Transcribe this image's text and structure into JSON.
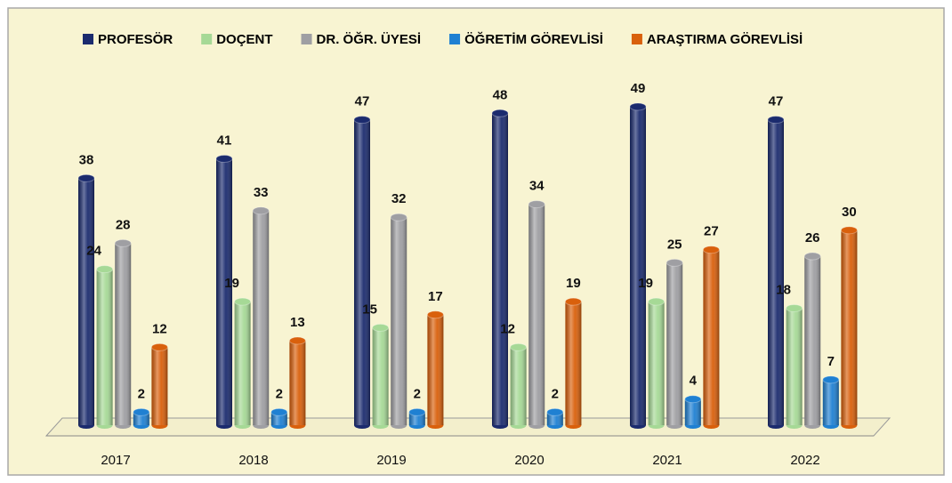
{
  "chart_data": {
    "type": "bar3d",
    "categories": [
      "2017",
      "2018",
      "2019",
      "2020",
      "2021",
      "2022"
    ],
    "series": [
      {
        "name": "PROFESÖR",
        "color": "#1b2b6e",
        "values": [
          38,
          41,
          47,
          48,
          49,
          47
        ]
      },
      {
        "name": "DOÇENT",
        "color": "#a6d996",
        "values": [
          24,
          19,
          15,
          12,
          19,
          18
        ]
      },
      {
        "name": "DR. ÖĞR. ÜYESİ",
        "color": "#9f9fa3",
        "values": [
          28,
          33,
          32,
          34,
          25,
          26
        ]
      },
      {
        "name": "ÖĞRETİM GÖREVLİSİ",
        "color": "#1f80d2",
        "values": [
          2,
          2,
          2,
          2,
          4,
          7
        ]
      },
      {
        "name": "ARAŞTIRMA GÖREVLİSİ",
        "color": "#d9600c",
        "values": [
          12,
          13,
          17,
          19,
          27,
          30
        ]
      }
    ],
    "legend": "top"
  }
}
